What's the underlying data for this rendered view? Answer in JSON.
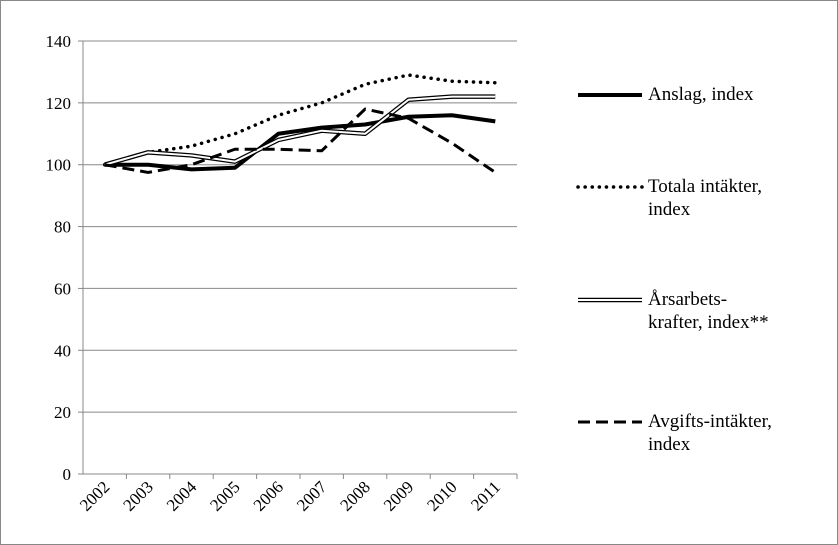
{
  "chart_data": {
    "type": "line",
    "categories": [
      "2002",
      "2003",
      "2004",
      "2005",
      "2006",
      "2007",
      "2008",
      "2009",
      "2010",
      "2011"
    ],
    "series": [
      {
        "name": "Anslag, index",
        "color": "#000000",
        "style": "thick",
        "values": [
          100,
          100,
          98.5,
          99,
          110,
          112,
          113,
          115.5,
          116,
          114
        ]
      },
      {
        "name": "Totala intäkter, index",
        "color": "#000000",
        "style": "dotted",
        "values": [
          100,
          104,
          106,
          110,
          116,
          120,
          126,
          129,
          127,
          126.5
        ]
      },
      {
        "name": "Årsarbets-krafter, index**",
        "color": "#000000",
        "style": "double",
        "values": [
          100,
          104,
          103,
          101,
          108,
          111,
          110,
          121,
          122,
          122
        ]
      },
      {
        "name": "Avgifts-intäkter, index",
        "color": "#000000",
        "style": "dashed",
        "values": [
          100,
          97.5,
          100,
          105,
          105,
          104.5,
          118,
          115,
          107,
          97.5
        ]
      }
    ],
    "ylim": [
      0,
      140
    ],
    "yticks": [
      0,
      20,
      40,
      60,
      80,
      100,
      120,
      140
    ],
    "grid": true,
    "legend": "right"
  }
}
